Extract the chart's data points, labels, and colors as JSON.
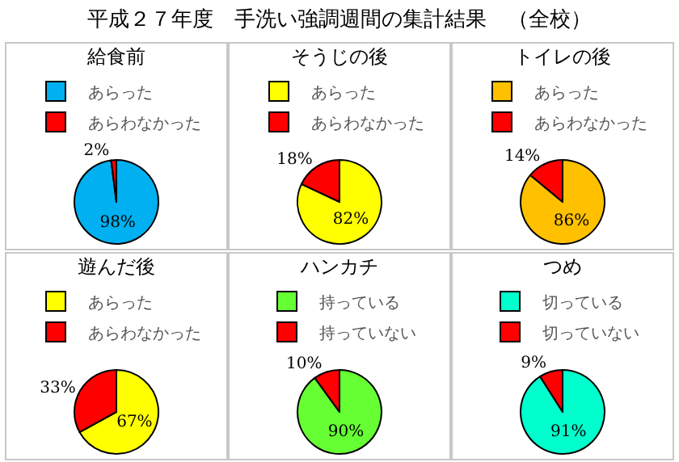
{
  "chart_data": [
    {
      "type": "other",
      "title": "平成２７年度　手洗い強調週間の集計結果　（全校）"
    },
    {
      "type": "pie",
      "title": "給食前",
      "categories": [
        "あらった",
        "あらわなかった"
      ],
      "values": [
        98,
        2
      ],
      "value_labels": [
        "98%",
        "2%"
      ],
      "colors": [
        "#00b0f0",
        "#ff0000"
      ],
      "legend": "top"
    },
    {
      "type": "pie",
      "title": "そうじの後",
      "categories": [
        "あらった",
        "あらわなかった"
      ],
      "values": [
        82,
        18
      ],
      "value_labels": [
        "82%",
        "18%"
      ],
      "colors": [
        "#ffff00",
        "#ff0000"
      ],
      "legend": "top"
    },
    {
      "type": "pie",
      "title": "トイレの後",
      "categories": [
        "あらった",
        "あらわなかった"
      ],
      "values": [
        86,
        14
      ],
      "value_labels": [
        "86%",
        "14%"
      ],
      "colors": [
        "#ffc000",
        "#ff0000"
      ],
      "legend": "top"
    },
    {
      "type": "pie",
      "title": "遊んだ後",
      "categories": [
        "あらった",
        "あらわなかった"
      ],
      "values": [
        67,
        33
      ],
      "value_labels": [
        "67%",
        "33%"
      ],
      "colors": [
        "#ffff00",
        "#ff0000"
      ],
      "legend": "top"
    },
    {
      "type": "pie",
      "title": "ハンカチ",
      "categories": [
        "持っている",
        "持っていない"
      ],
      "values": [
        90,
        10
      ],
      "value_labels": [
        "90%",
        "10%"
      ],
      "colors": [
        "#66ff33",
        "#ff0000"
      ],
      "legend": "top"
    },
    {
      "type": "pie",
      "title": "つめ",
      "categories": [
        "切っている",
        "切っていない"
      ],
      "values": [
        91,
        9
      ],
      "value_labels": [
        "91%",
        "9%"
      ],
      "colors": [
        "#00ffcc",
        "#ff0000"
      ],
      "legend": "top"
    }
  ]
}
